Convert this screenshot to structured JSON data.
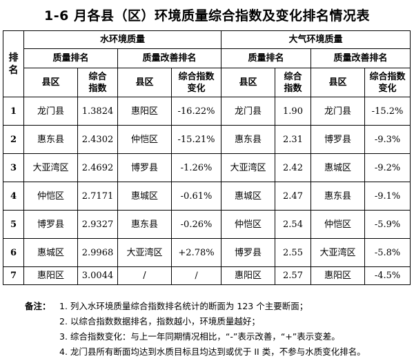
{
  "title": "1-6 月各县（区）环境质量综合指数及变化排名情况表",
  "table": {
    "rank_header": "排名",
    "water_header": "水环境质量",
    "air_header": "大气环境质量",
    "quality_rank": "质量排名",
    "improve_rank": "质量改善排名",
    "county": "县区",
    "composite_index": "综合\n指数",
    "index_change": "综合指数\n变化",
    "rows": [
      {
        "rank": "1",
        "w_q_county": "龙门县",
        "w_q_index": "1.3824",
        "w_i_county": "惠阳区",
        "w_i_change": "-16.22%",
        "a_q_county": "龙门县",
        "a_q_index": "1.90",
        "a_i_county": "龙门县",
        "a_i_change": "-15.2%"
      },
      {
        "rank": "2",
        "w_q_county": "惠东县",
        "w_q_index": "2.4302",
        "w_i_county": "仲恺区",
        "w_i_change": "-15.21%",
        "a_q_county": "惠东县",
        "a_q_index": "2.31",
        "a_i_county": "博罗县",
        "a_i_change": "-9.3%"
      },
      {
        "rank": "3",
        "w_q_county": "大亚湾区",
        "w_q_index": "2.4692",
        "w_i_county": "博罗县",
        "w_i_change": "-1.26%",
        "a_q_county": "大亚湾区",
        "a_q_index": "2.42",
        "a_i_county": "惠城区",
        "a_i_change": "-9.2%"
      },
      {
        "rank": "4",
        "w_q_county": "仲恺区",
        "w_q_index": "2.7171",
        "w_i_county": "惠城区",
        "w_i_change": "-0.61%",
        "a_q_county": "惠城区",
        "a_q_index": "2.47",
        "a_i_county": "惠东县",
        "a_i_change": "-9.1%"
      },
      {
        "rank": "5",
        "w_q_county": "博罗县",
        "w_q_index": "2.9327",
        "w_i_county": "惠东县",
        "w_i_change": "-0.26%",
        "a_q_county": "仲恺区",
        "a_q_index": "2.54",
        "a_i_county": "仲恺区",
        "a_i_change": "-5.9%"
      },
      {
        "rank": "6",
        "w_q_county": "惠城区",
        "w_q_index": "2.9968",
        "w_i_county": "大亚湾区",
        "w_i_change": "+2.78%",
        "a_q_county": "博罗县",
        "a_q_index": "2.55",
        "a_i_county": "大亚湾区",
        "a_i_change": "-5.8%"
      },
      {
        "rank": "7",
        "w_q_county": "惠阳区",
        "w_q_index": "3.0044",
        "w_i_county": "/",
        "w_i_change": "/",
        "a_q_county": "惠阳区",
        "a_q_index": "2.57",
        "a_i_county": "惠阳区",
        "a_i_change": "-4.5%"
      }
    ]
  },
  "notes": {
    "label": "备注：",
    "items": [
      "1. 列入水环境质量综合指数排名统计的断面为 123 个主要断面；",
      "2. 以综合指数数据排名，指数越小，环境质量越好；",
      "3. 综合指数变化：与上一年同期情况相比，“-”表示改善，“+”表示变差。",
      "4. 龙门县所有断面均达到水质目标且均达到或优于 II 类，不参与水质变化排名。"
    ]
  }
}
